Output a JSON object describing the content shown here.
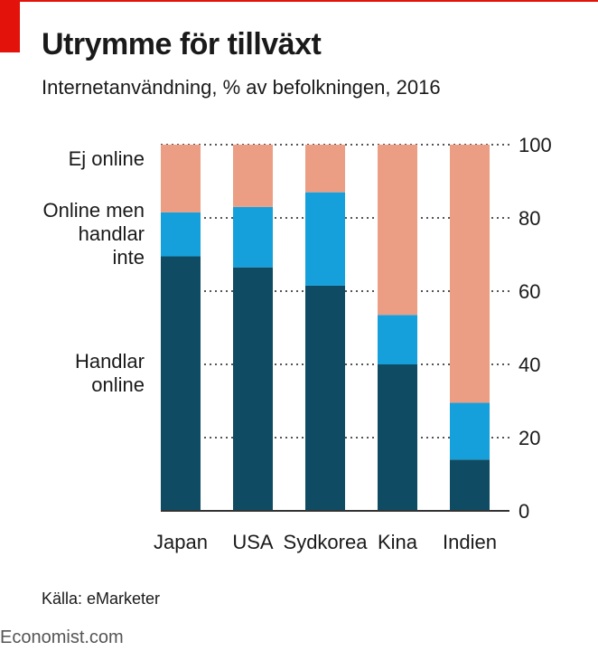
{
  "title": "Utrymme för tillväxt",
  "subtitle": "Internetanvändning, % av befolkningen, 2016",
  "source": "Källa: eMarketer",
  "brand": "Economist.com",
  "colors": {
    "accent": "#e3120b",
    "handlar_online": "#0f4c63",
    "online_men_handlar_inte": "#16a0db",
    "ej_online": "#ec9e84"
  },
  "chart_data": {
    "type": "bar",
    "stacked": true,
    "categories": [
      "Japan",
      "USA",
      "Sydkorea",
      "Kina",
      "Indien"
    ],
    "series": [
      {
        "name": "Handlar online",
        "legend_lines": [
          "Handlar",
          "online"
        ],
        "color_key": "handlar_online",
        "values": [
          69.5,
          66.5,
          61.5,
          40,
          14
        ]
      },
      {
        "name": "Online men handlar inte",
        "legend_lines": [
          "Online men",
          "handlar",
          "inte"
        ],
        "color_key": "online_men_handlar_inte",
        "values": [
          12,
          16.5,
          25.5,
          13.5,
          15.5
        ]
      },
      {
        "name": "Ej online",
        "legend_lines": [
          "Ej online"
        ],
        "color_key": "ej_online",
        "values": [
          18.5,
          17,
          13,
          46.5,
          70.5
        ]
      }
    ],
    "ylim": [
      0,
      100
    ],
    "yticks": [
      0,
      20,
      40,
      60,
      80,
      100
    ],
    "y_axis_side": "right",
    "grid": "dotted",
    "legend_placement": "left"
  }
}
